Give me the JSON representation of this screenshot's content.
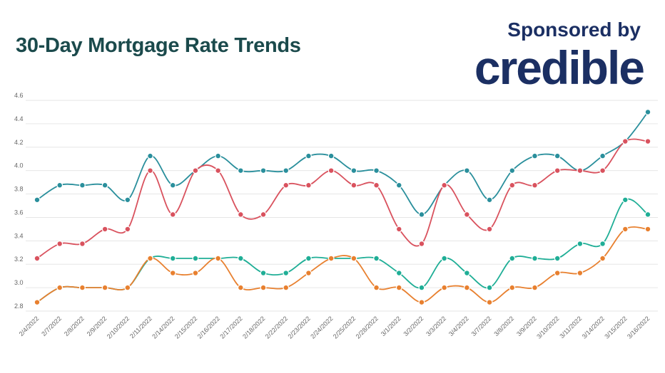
{
  "header": {
    "title": "30-Day Mortgage Rate Trends",
    "sponsor_label": "Sponsored by",
    "sponsor_logo": "credible"
  },
  "chart_data": {
    "type": "line",
    "title": "30-Day Mortgage Rate Trends",
    "xlabel": "",
    "ylabel": "",
    "ylim": [
      2.8,
      4.6
    ],
    "yticks": [
      "2.8",
      "3.0",
      "3.2",
      "3.4",
      "3.6",
      "3.8",
      "4.0",
      "4.2",
      "4.4",
      "4.6"
    ],
    "grid": true,
    "legend": "none",
    "smooth": true,
    "categories": [
      "2/4/2022",
      "2/7/2022",
      "2/8/2022",
      "2/9/2022",
      "2/10/2022",
      "2/11/2022",
      "2/14/2022",
      "2/15/2022",
      "2/16/2022",
      "2/17/2022",
      "2/18/2022",
      "2/22/2022",
      "2/23/2022",
      "2/24/2022",
      "2/25/2022",
      "2/28/2022",
      "3/1/2022",
      "3/2/2022",
      "3/3/2022",
      "3/4/2022",
      "3/7/2022",
      "3/8/2022",
      "3/9/2022",
      "3/10/2022",
      "3/11/2022",
      "3/14/2022",
      "3/15/2022",
      "3/16/2022"
    ],
    "series": [
      {
        "color": "#2a8f9c",
        "values": [
          3.75,
          3.875,
          3.875,
          3.875,
          3.75,
          4.125,
          3.875,
          4.0,
          4.125,
          4.0,
          4.0,
          4.0,
          4.125,
          4.125,
          4.0,
          4.0,
          3.875,
          3.625,
          3.875,
          4.0,
          3.75,
          4.0,
          4.125,
          4.125,
          4.0,
          4.125,
          4.25,
          4.5
        ]
      },
      {
        "color": "#d9525e",
        "values": [
          3.25,
          3.375,
          3.375,
          3.5,
          3.5,
          4.0,
          3.625,
          4.0,
          4.0,
          3.625,
          3.625,
          3.875,
          3.875,
          4.0,
          3.875,
          3.875,
          3.5,
          3.375,
          3.875,
          3.625,
          3.5,
          3.875,
          3.875,
          4.0,
          4.0,
          4.0,
          4.25,
          4.25
        ]
      },
      {
        "color": "#1fae96",
        "values": [
          2.875,
          3.0,
          3.0,
          3.0,
          3.0,
          3.25,
          3.25,
          3.25,
          3.25,
          3.25,
          3.125,
          3.125,
          3.25,
          3.25,
          3.25,
          3.25,
          3.125,
          3.0,
          3.25,
          3.125,
          3.0,
          3.25,
          3.25,
          3.25,
          3.375,
          3.375,
          3.75,
          3.625
        ]
      },
      {
        "color": "#e8802f",
        "values": [
          2.875,
          3.0,
          3.0,
          3.0,
          3.0,
          3.25,
          3.125,
          3.125,
          3.25,
          3.0,
          3.0,
          3.0,
          3.125,
          3.25,
          3.25,
          3.0,
          3.0,
          2.875,
          3.0,
          3.0,
          2.875,
          3.0,
          3.0,
          3.125,
          3.125,
          3.25,
          3.5,
          3.5
        ]
      }
    ]
  }
}
